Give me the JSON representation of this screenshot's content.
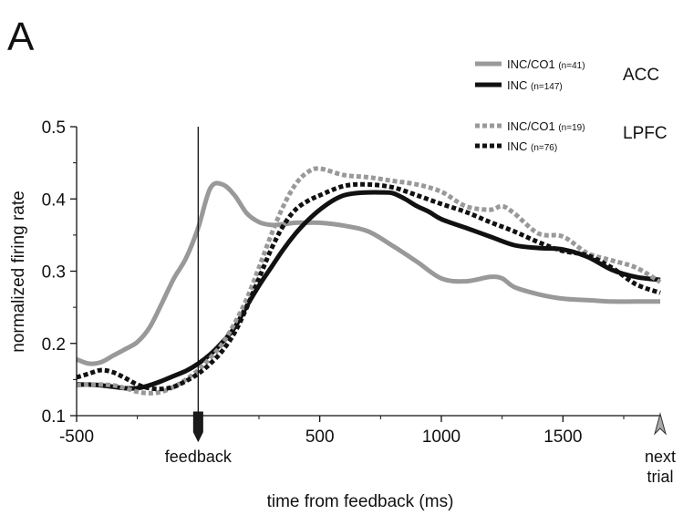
{
  "panel_letter": "A",
  "chart_data": {
    "type": "line",
    "title": "",
    "xlabel": "time from feedback (ms)",
    "ylabel": "normalized firing rate",
    "xlim": [
      -500,
      1900
    ],
    "ylim": [
      0.1,
      0.5
    ],
    "x_ticks": [
      -500,
      0,
      500,
      1000,
      1500
    ],
    "x_tick_labels": [
      "-500",
      "",
      "500",
      "1000",
      "1500"
    ],
    "y_ticks": [
      0.1,
      0.2,
      0.3,
      0.4,
      0.5
    ],
    "y_tick_labels": [
      "0.1",
      "0.2",
      "0.3",
      "0.4",
      "0.5"
    ],
    "grid": false,
    "events": [
      {
        "x": 0,
        "label": "feedback",
        "line": true
      },
      {
        "x": 1900,
        "label": "next\ntrial",
        "line": false
      }
    ],
    "legend_groups": [
      {
        "region": "ACC",
        "entries": [
          {
            "name": "INC/CO1",
            "n": "(n=41)",
            "color": "#999999",
            "dash": "solid"
          },
          {
            "name": "INC",
            "n": "(n=147)",
            "color": "#111111",
            "dash": "solid"
          }
        ]
      },
      {
        "region": "LPFC",
        "entries": [
          {
            "name": "INC/CO1",
            "n": "(n=19)",
            "color": "#999999",
            "dash": "dotted"
          },
          {
            "name": "INC",
            "n": "(n=76)",
            "color": "#111111",
            "dash": "dotted"
          }
        ]
      }
    ],
    "series": [
      {
        "name": "INC/CO1 (n=41) ACC",
        "color": "#999999",
        "dash": "solid",
        "x": [
          -500,
          -450,
          -400,
          -350,
          -300,
          -250,
          -200,
          -150,
          -100,
          -50,
          0,
          50,
          100,
          150,
          200,
          250,
          300,
          350,
          400,
          450,
          500,
          600,
          700,
          800,
          900,
          1000,
          1100,
          1200,
          1250,
          1300,
          1400,
          1500,
          1600,
          1700,
          1800,
          1900
        ],
        "y": [
          0.178,
          0.172,
          0.174,
          0.183,
          0.192,
          0.202,
          0.222,
          0.255,
          0.29,
          0.318,
          0.36,
          0.415,
          0.42,
          0.405,
          0.38,
          0.368,
          0.364,
          0.365,
          0.367,
          0.367,
          0.367,
          0.363,
          0.355,
          0.335,
          0.313,
          0.29,
          0.286,
          0.292,
          0.29,
          0.278,
          0.268,
          0.262,
          0.26,
          0.258,
          0.258,
          0.258
        ]
      },
      {
        "name": "INC (n=147) ACC",
        "color": "#111111",
        "dash": "solid",
        "x": [
          -500,
          -450,
          -400,
          -350,
          -300,
          -250,
          -200,
          -150,
          -100,
          -50,
          0,
          50,
          100,
          150,
          200,
          250,
          300,
          350,
          400,
          450,
          500,
          550,
          600,
          650,
          700,
          750,
          800,
          850,
          900,
          950,
          1000,
          1100,
          1200,
          1300,
          1400,
          1500,
          1600,
          1700,
          1800,
          1900
        ],
        "y": [
          0.143,
          0.143,
          0.142,
          0.14,
          0.138,
          0.138,
          0.142,
          0.148,
          0.155,
          0.162,
          0.172,
          0.185,
          0.202,
          0.222,
          0.252,
          0.28,
          0.305,
          0.33,
          0.352,
          0.37,
          0.385,
          0.397,
          0.405,
          0.408,
          0.409,
          0.409,
          0.408,
          0.4,
          0.39,
          0.382,
          0.372,
          0.36,
          0.348,
          0.336,
          0.332,
          0.33,
          0.32,
          0.302,
          0.292,
          0.288
        ]
      },
      {
        "name": "INC/CO1 (n=19) LPFC",
        "color": "#999999",
        "dash": "dotted",
        "x": [
          -500,
          -450,
          -400,
          -350,
          -300,
          -250,
          -200,
          -150,
          -100,
          -50,
          0,
          50,
          100,
          150,
          200,
          250,
          300,
          350,
          400,
          450,
          500,
          600,
          700,
          800,
          900,
          1000,
          1100,
          1200,
          1250,
          1300,
          1400,
          1500,
          1600,
          1700,
          1800,
          1900
        ],
        "y": [
          0.142,
          0.143,
          0.143,
          0.142,
          0.138,
          0.133,
          0.131,
          0.133,
          0.14,
          0.15,
          0.163,
          0.18,
          0.2,
          0.228,
          0.262,
          0.305,
          0.35,
          0.39,
          0.42,
          0.437,
          0.442,
          0.433,
          0.43,
          0.425,
          0.42,
          0.41,
          0.39,
          0.385,
          0.39,
          0.38,
          0.352,
          0.348,
          0.325,
          0.315,
          0.305,
          0.285
        ]
      },
      {
        "name": "INC (n=76) LPFC",
        "color": "#111111",
        "dash": "dotted",
        "x": [
          -500,
          -450,
          -400,
          -350,
          -300,
          -250,
          -200,
          -150,
          -100,
          -50,
          0,
          50,
          100,
          150,
          200,
          250,
          300,
          350,
          400,
          450,
          500,
          600,
          700,
          800,
          900,
          1000,
          1100,
          1200,
          1300,
          1400,
          1500,
          1600,
          1700,
          1800,
          1900
        ],
        "y": [
          0.153,
          0.158,
          0.163,
          0.16,
          0.152,
          0.143,
          0.138,
          0.137,
          0.14,
          0.148,
          0.158,
          0.172,
          0.19,
          0.215,
          0.25,
          0.29,
          0.33,
          0.363,
          0.385,
          0.397,
          0.405,
          0.418,
          0.42,
          0.416,
          0.405,
          0.393,
          0.382,
          0.368,
          0.355,
          0.34,
          0.328,
          0.322,
          0.305,
          0.282,
          0.27
        ]
      }
    ]
  }
}
